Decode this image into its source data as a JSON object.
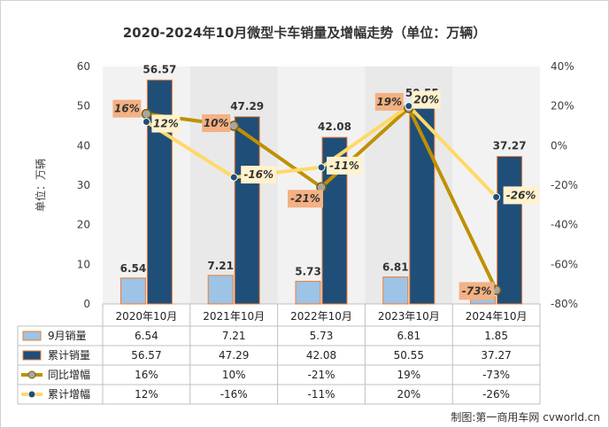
{
  "chart_data": {
    "type": "bar",
    "title": "2020-2024年10月微型卡车销量及增幅走势（单位：万辆）",
    "ylabel": "单位：万辆",
    "categories": [
      "2020年10月",
      "2021年10月",
      "2022年10月",
      "2023年10月",
      "2024年10月"
    ],
    "ylim": [
      0,
      60
    ],
    "y_ticks": [
      0,
      10,
      20,
      30,
      40,
      50,
      60
    ],
    "y2lim": [
      -80,
      40
    ],
    "y2_ticks": [
      "40%",
      "20%",
      "0%",
      "-20%",
      "-40%",
      "-60%",
      "-80%"
    ],
    "grid": false,
    "legend": "table-below",
    "series": [
      {
        "name": "9月销量",
        "kind": "bar",
        "color": "#9DC3E6",
        "values": [
          6.54,
          7.21,
          5.73,
          6.81,
          1.85
        ],
        "labels": [
          "6.54",
          "7.21",
          "5.73",
          "6.81",
          "1.85"
        ]
      },
      {
        "name": "累计销量",
        "kind": "bar",
        "color": "#1F4E79",
        "values": [
          56.57,
          47.29,
          42.08,
          50.55,
          37.27
        ],
        "labels": [
          "56.57",
          "47.29",
          "42.08",
          "50.55",
          "37.27"
        ]
      },
      {
        "name": "同比增幅",
        "kind": "line",
        "axis": "right",
        "color": "#BF9000",
        "values": [
          16,
          10,
          -21,
          19,
          -73
        ],
        "labels": [
          "16%",
          "10%",
          "-21%",
          "19%",
          "-73%"
        ]
      },
      {
        "name": "累计增幅",
        "kind": "line",
        "axis": "right",
        "color": "#FFD966",
        "values": [
          12,
          -16,
          -11,
          20,
          -26
        ],
        "labels": [
          "12%",
          "-16%",
          "-11%",
          "20%",
          "-26%"
        ]
      }
    ]
  },
  "credit": "制图:第一商用车网 cvworld.cn"
}
